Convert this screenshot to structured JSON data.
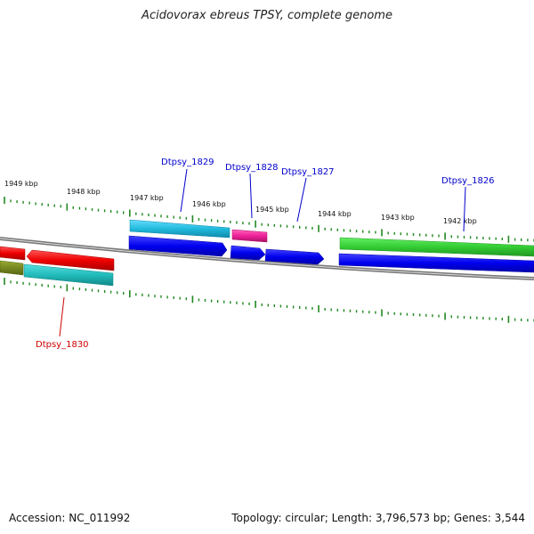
{
  "title": "Acidovorax ebreus TPSY, complete genome",
  "footer": {
    "accession": "Accession: NC_011992",
    "summary": "Topology: circular; Length: 3,796,573 bp; Genes: 3,544"
  },
  "ruler": {
    "labels": [
      {
        "text": "1949 kbp",
        "value": 1949
      },
      {
        "text": "1948 kbp",
        "value": 1948
      },
      {
        "text": "1947 kbp",
        "value": 1947
      },
      {
        "text": "1946 kbp",
        "value": 1946
      },
      {
        "text": "1945 kbp",
        "value": 1945
      },
      {
        "text": "1944 kbp",
        "value": 1944
      },
      {
        "text": "1943 kbp",
        "value": 1943
      },
      {
        "text": "1942 kbp",
        "value": 1942
      }
    ]
  },
  "gene_labels": [
    {
      "text": "Dtpsy_1829",
      "color": "#0000cc"
    },
    {
      "text": "Dtpsy_1828",
      "color": "#0000cc"
    },
    {
      "text": "Dtpsy_1827",
      "color": "#0000cc"
    },
    {
      "text": "Dtpsy_1826",
      "color": "#0000cc"
    },
    {
      "text": "Dtpsy_1830",
      "color": "#cc0000"
    }
  ],
  "colors": {
    "backbone": "#888888",
    "ticks": "#228822",
    "leader_blue": "#0000cc",
    "leader_red": "#cc0000",
    "cyan": "#22bbdd",
    "magenta": "#ee2299",
    "blue": "#0000ee",
    "green": "#33cc33",
    "red": "#ee0000",
    "teal": "#22bbbb",
    "olive": "#778822"
  }
}
